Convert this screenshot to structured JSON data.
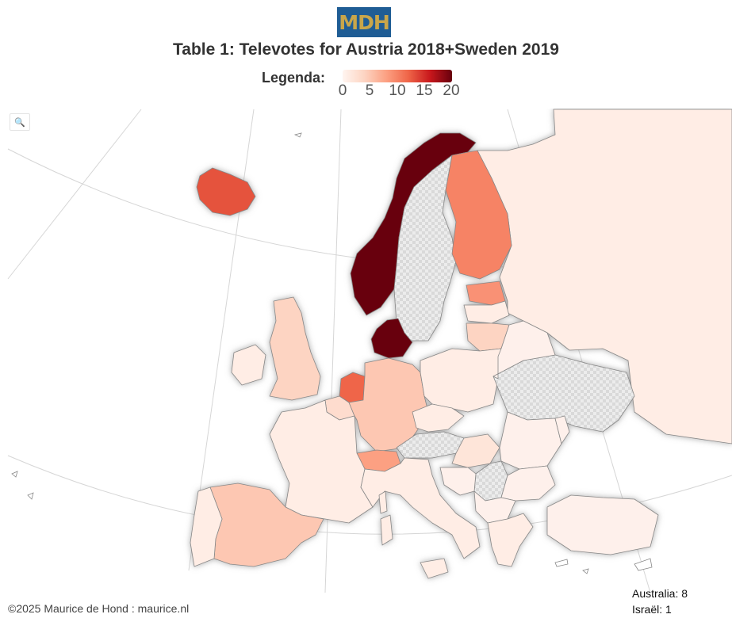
{
  "logo": "MDH",
  "title": "Table 1: Televotes for Austria 2018+Sweden 2019",
  "legend": {
    "label": "Legenda:",
    "ticks": [
      "0",
      "5",
      "10",
      "15",
      "20"
    ],
    "colors": [
      "#fff5f0",
      "#fdd4c2",
      "#fca082",
      "#ef6548",
      "#c8171c",
      "#67000d"
    ]
  },
  "search_icon": "search-icon",
  "colors": {
    "no_data": "#e0e0e0",
    "border": "#888888",
    "low": "#fef0eb"
  },
  "countries": [
    {
      "name": "Norway",
      "value": 20
    },
    {
      "name": "Denmark",
      "value": 20
    },
    {
      "name": "Iceland",
      "value": 13
    },
    {
      "name": "Netherlands",
      "value": 12
    },
    {
      "name": "Finland",
      "value": 10
    },
    {
      "name": "Estonia",
      "value": 9
    },
    {
      "name": "Switzerland",
      "value": 8
    },
    {
      "name": "Germany",
      "value": 5
    },
    {
      "name": "Spain",
      "value": 5
    },
    {
      "name": "United Kingdom",
      "value": 4
    },
    {
      "name": "Lithuania",
      "value": 4
    },
    {
      "name": "Belgium",
      "value": 3
    },
    {
      "name": "Hungary",
      "value": 2
    },
    {
      "name": "France",
      "value": 1
    },
    {
      "name": "Italy",
      "value": 1
    },
    {
      "name": "Poland",
      "value": 1
    },
    {
      "name": "Russia",
      "value": 1
    },
    {
      "name": "Portugal",
      "value": 1
    },
    {
      "name": "Ireland",
      "value": 1
    },
    {
      "name": "Latvia",
      "value": 1
    },
    {
      "name": "Czechia",
      "value": 1
    },
    {
      "name": "Greece",
      "value": 1
    },
    {
      "name": "Sweden",
      "value": null
    },
    {
      "name": "Austria",
      "value": null
    },
    {
      "name": "Ukraine",
      "value": null
    },
    {
      "name": "Serbia",
      "value": null
    }
  ],
  "credit": "©2025 Maurice de Hond : maurice.nl",
  "extras": [
    {
      "name": "Australia",
      "label": "Australia: 8"
    },
    {
      "name": "Israel",
      "label": "Israël: 1"
    }
  ]
}
